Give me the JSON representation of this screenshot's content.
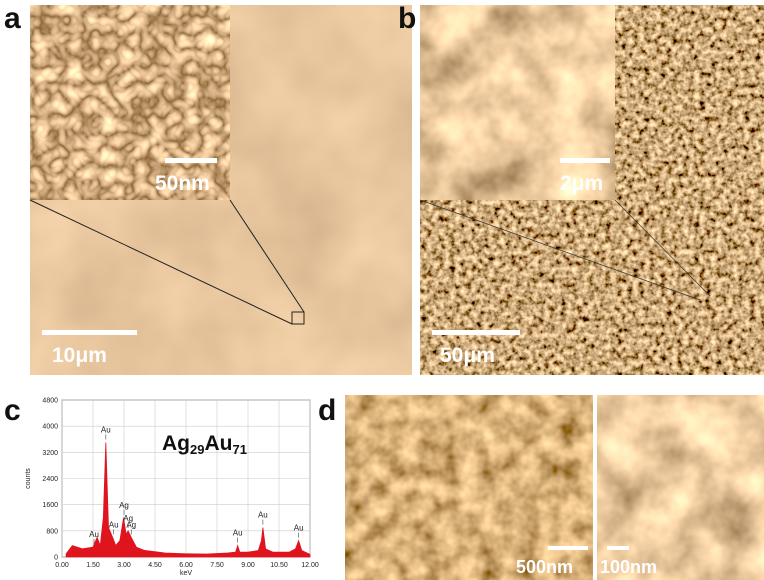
{
  "panels": {
    "a": {
      "label": "a",
      "inset_scale": "50nm",
      "scale": "10μm"
    },
    "b": {
      "label": "b",
      "inset_scale": "2μm",
      "scale": "50μm"
    },
    "c": {
      "label": "c"
    },
    "d": {
      "label": "d",
      "scale_left": "500nm",
      "scale_right": "100nm"
    }
  },
  "formula": {
    "parts": [
      "Ag",
      "29",
      "Au",
      "71"
    ]
  },
  "chart_data": {
    "type": "area",
    "color": "#e0141e",
    "x_label": "keV",
    "y_label": "counts",
    "x": [
      0.2,
      0.5,
      1.0,
      1.5,
      1.7,
      1.85,
      2.0,
      2.12,
      2.25,
      2.45,
      2.6,
      2.8,
      2.98,
      3.1,
      3.2,
      3.35,
      3.6,
      4.0,
      5.0,
      6.0,
      7.0,
      8.0,
      8.4,
      8.5,
      8.6,
      9.0,
      9.5,
      9.65,
      9.72,
      9.85,
      10.2,
      11.0,
      11.3,
      11.45,
      11.6,
      12.0
    ],
    "values": [
      100,
      350,
      250,
      300,
      600,
      350,
      1200,
      3500,
      900,
      600,
      350,
      500,
      1200,
      700,
      800,
      600,
      300,
      200,
      120,
      100,
      90,
      120,
      150,
      350,
      150,
      150,
      200,
      500,
      900,
      250,
      150,
      150,
      250,
      500,
      200,
      80
    ],
    "xlim": [
      0,
      12
    ],
    "ylim": [
      0,
      4800
    ],
    "xticks": [
      {
        "value": 0,
        "label": "0.00"
      },
      {
        "value": 1.5,
        "label": "1.50"
      },
      {
        "value": 3,
        "label": "3.00"
      },
      {
        "value": 4.5,
        "label": "4.50"
      },
      {
        "value": 6,
        "label": "6.00"
      },
      {
        "value": 7.5,
        "label": "7.50"
      },
      {
        "value": 9,
        "label": "9.00"
      },
      {
        "value": 10.5,
        "label": "10.50"
      },
      {
        "value": 12,
        "label": "12.00"
      }
    ],
    "yticks": [
      0,
      800,
      1600,
      2400,
      3200,
      4000,
      4800
    ],
    "grid": true,
    "peak_labels": [
      {
        "x": 1.55,
        "label": "Au"
      },
      {
        "x": 2.12,
        "label": "Au"
      },
      {
        "x": 2.5,
        "label": "Au"
      },
      {
        "x": 3.0,
        "label": "Ag"
      },
      {
        "x": 3.2,
        "label": "Ag"
      },
      {
        "x": 3.35,
        "label": "Ag"
      },
      {
        "x": 8.5,
        "label": "Au"
      },
      {
        "x": 9.72,
        "label": "Au"
      },
      {
        "x": 11.45,
        "label": "Au"
      }
    ]
  }
}
